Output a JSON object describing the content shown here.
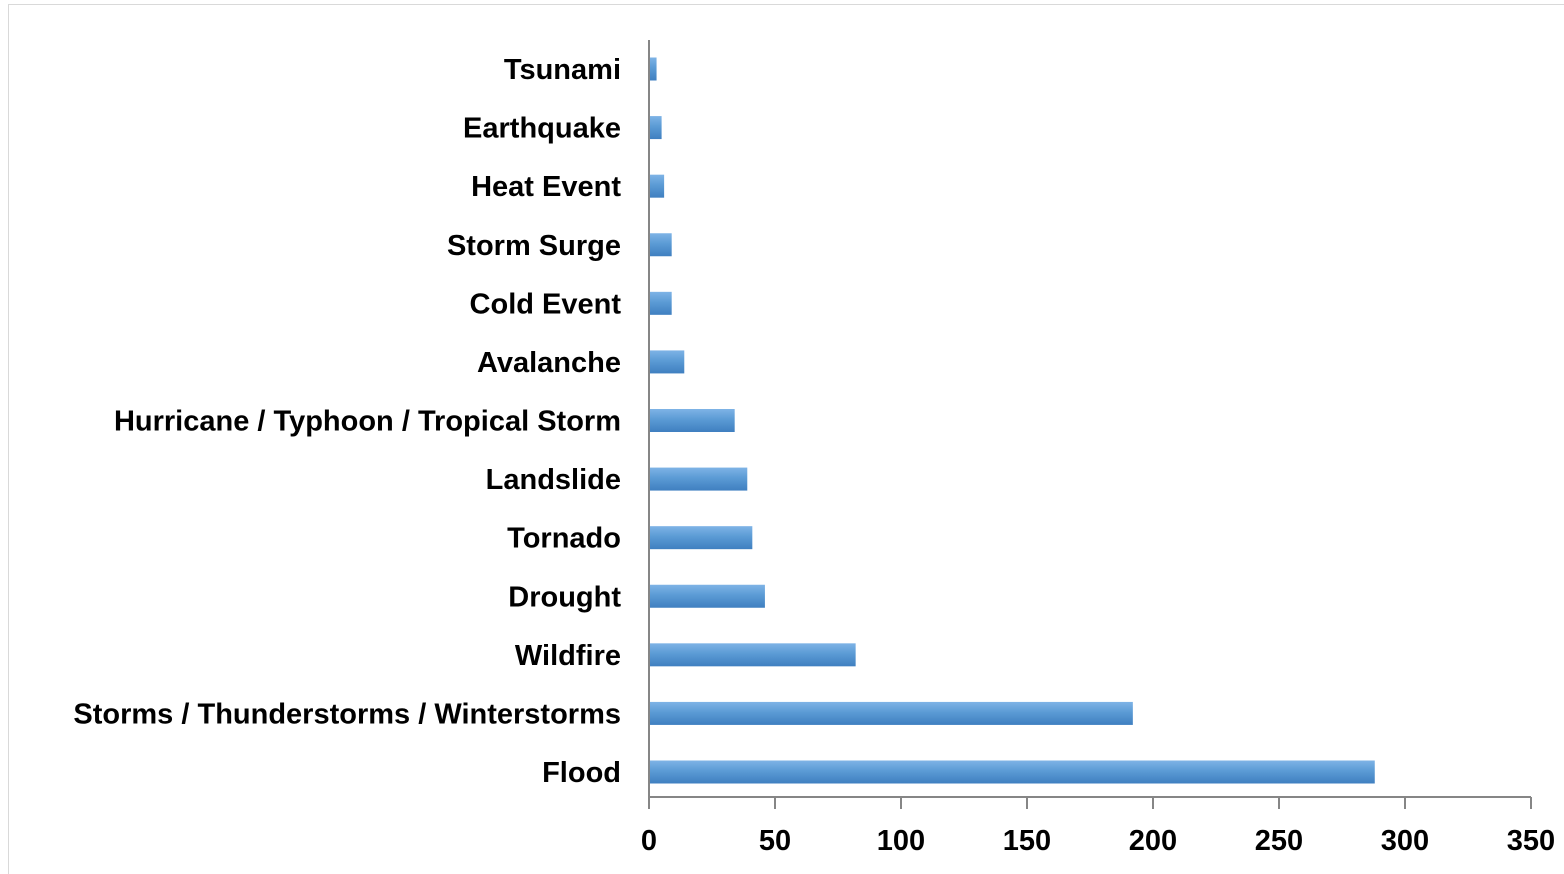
{
  "chart_data": {
    "type": "bar",
    "orientation": "horizontal",
    "title": "",
    "xlabel": "",
    "ylabel": "",
    "categories": [
      "Tsunami",
      "Earthquake",
      "Heat Event",
      "Storm Surge",
      "Cold Event",
      "Avalanche",
      "Hurricane / Typhoon / Tropical Storm",
      "Landslide",
      "Tornado",
      "Drought",
      "Wildfire",
      "Storms / Thunderstorms / Winterstorms",
      "Flood"
    ],
    "values": [
      3,
      5,
      6,
      9,
      9,
      14,
      34,
      39,
      41,
      46,
      82,
      192,
      288
    ],
    "xlim": [
      0,
      350
    ],
    "xticks": [
      "0",
      "50",
      "100",
      "150",
      "200",
      "250",
      "300",
      "350"
    ],
    "grid": false,
    "legend": "none",
    "bar_color": "#5b9bd5"
  }
}
